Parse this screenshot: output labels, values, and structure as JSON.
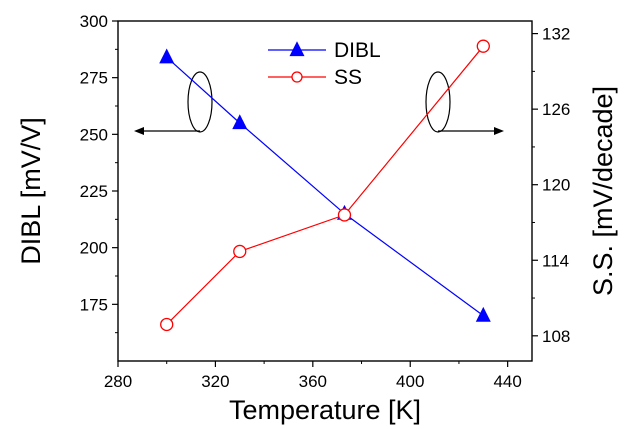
{
  "chart_data": {
    "type": "line",
    "title": "",
    "xlabel": "Temperature [K]",
    "ylabel_left": "DIBL [mV/V]",
    "ylabel_right": "S.S. [mV/decade]",
    "xlim": [
      280,
      450
    ],
    "ylim_left": [
      150,
      300
    ],
    "ylim_right": [
      106,
      133
    ],
    "x_ticks": [
      280,
      320,
      360,
      400,
      440
    ],
    "y_left_ticks": [
      175,
      200,
      225,
      250,
      275,
      300
    ],
    "y_right_ticks": [
      108,
      114,
      120,
      126,
      132
    ],
    "grid": false,
    "legend_position": "top-center",
    "series": [
      {
        "name": "DIBL",
        "axis": "left",
        "marker": "filled-triangle",
        "color": "#0000ff",
        "x": [
          300,
          330,
          373,
          430
        ],
        "y": [
          284,
          255,
          215,
          170
        ]
      },
      {
        "name": "SS",
        "axis": "right",
        "marker": "open-circle",
        "color": "#ff0000",
        "x": [
          300,
          330,
          373,
          430
        ],
        "y": [
          108.9,
          114.7,
          117.6,
          131.0
        ]
      }
    ]
  }
}
